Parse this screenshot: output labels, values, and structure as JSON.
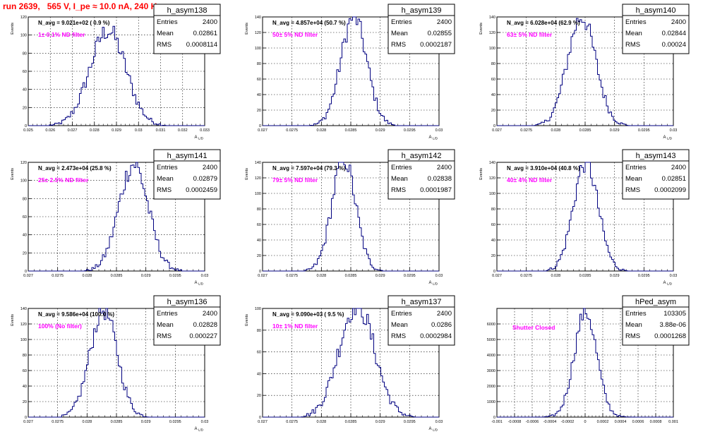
{
  "run_title": "run 2639,   565 V, I_pe ≈ 10.0 nA, 240 Hz",
  "colors": {
    "line": "#000080",
    "filter_text": "#ff00ff",
    "title": "#ff0000",
    "grid": "#000000"
  },
  "chart_data": [
    {
      "type": "histogram",
      "name": "h_asym138",
      "entries": "2400",
      "mean": "0.02861",
      "rms": "0.0008114",
      "navg": "N_avg = 9.021e+02 ( 0.9 %)",
      "filter": "1± 0.1% ND filter",
      "ylabel": "Events",
      "xlabel": "A_{L/D}",
      "xlim": [
        0.025,
        0.033
      ],
      "ylim": [
        0,
        120
      ],
      "xticks": [
        0.025,
        0.026,
        0.027,
        0.028,
        0.029,
        0.03,
        0.031,
        0.032,
        0.033
      ],
      "xtick_labels": [
        "0.025",
        "0.026",
        "0.027",
        "0.028",
        "0.029",
        "0.03",
        "0.031",
        "0.032",
        "0.033"
      ],
      "yticks": [
        0,
        20,
        40,
        60,
        80,
        100,
        120
      ],
      "ytick_labels": [
        "0",
        "20",
        "40",
        "60",
        "80",
        "100",
        "120"
      ],
      "peak": 105,
      "mu": 0.02861,
      "sigma": 0.00081
    },
    {
      "type": "histogram",
      "name": "h_asym139",
      "entries": "2400",
      "mean": "0.02855",
      "rms": "0.0002187",
      "navg": "N_avg = 4.857e+04 (50.7 %)",
      "filter": "50± 5% ND filter",
      "ylabel": "Events",
      "xlabel": "A_{L/D}",
      "xlim": [
        0.027,
        0.03
      ],
      "ylim": [
        0,
        140
      ],
      "xticks": [
        0.027,
        0.0275,
        0.028,
        0.0285,
        0.029,
        0.0295,
        0.03
      ],
      "xtick_labels": [
        "0.027",
        "0.0275",
        "0.028",
        "0.0285",
        "0.029",
        "0.0295",
        "0.03"
      ],
      "yticks": [
        0,
        20,
        40,
        60,
        80,
        100,
        120,
        140
      ],
      "ytick_labels": [
        "0",
        "20",
        "40",
        "60",
        "80",
        "100",
        "120",
        "140"
      ],
      "peak": 140,
      "mu": 0.02855,
      "sigma": 0.00022
    },
    {
      "type": "histogram",
      "name": "h_asym140",
      "entries": "2400",
      "mean": "0.02844",
      "rms": "0.00024",
      "navg": "N_avg = 6.028e+04 (62.9 %)",
      "filter": "63± 5% ND filter",
      "ylabel": "Events",
      "xlabel": "A_{L/D}",
      "xlim": [
        0.027,
        0.03
      ],
      "ylim": [
        0,
        140
      ],
      "xticks": [
        0.027,
        0.0275,
        0.028,
        0.0285,
        0.029,
        0.0295,
        0.03
      ],
      "xtick_labels": [
        "0.027",
        "0.0275",
        "0.028",
        "0.0285",
        "0.029",
        "0.0295",
        "0.03"
      ],
      "yticks": [
        0,
        20,
        40,
        60,
        80,
        100,
        120,
        140
      ],
      "ytick_labels": [
        "0",
        "20",
        "40",
        "60",
        "80",
        "100",
        "120",
        "140"
      ],
      "peak": 140,
      "mu": 0.02844,
      "sigma": 0.00024
    },
    {
      "type": "histogram",
      "name": "h_asym141",
      "entries": "2400",
      "mean": "0.02879",
      "rms": "0.0002459",
      "navg": "N_avg = 2.473e+04 (25.8 %)",
      "filter": "25± 2.5% ND filter",
      "ylabel": "Events",
      "xlabel": "A_{L/D}",
      "xlim": [
        0.027,
        0.03
      ],
      "ylim": [
        0,
        120
      ],
      "xticks": [
        0.027,
        0.0275,
        0.028,
        0.0285,
        0.029,
        0.0295,
        0.03
      ],
      "xtick_labels": [
        "0.027",
        "0.0275",
        "0.028",
        "0.0285",
        "0.029",
        "0.0295",
        "0.03"
      ],
      "yticks": [
        0,
        20,
        40,
        60,
        80,
        100,
        120
      ],
      "ytick_labels": [
        "0",
        "20",
        "40",
        "60",
        "80",
        "100",
        "120"
      ],
      "peak": 118,
      "mu": 0.02879,
      "sigma": 0.00025
    },
    {
      "type": "histogram",
      "name": "h_asym142",
      "entries": "2400",
      "mean": "0.02838",
      "rms": "0.0001987",
      "navg": "N_avg = 7.597e+04 (79.3 %)",
      "filter": "79± 5% ND filter",
      "ylabel": "Events",
      "xlabel": "A_{L/D}",
      "xlim": [
        0.027,
        0.03
      ],
      "ylim": [
        0,
        140
      ],
      "xticks": [
        0.027,
        0.0275,
        0.028,
        0.0285,
        0.029,
        0.0295,
        0.03
      ],
      "xtick_labels": [
        "0.027",
        "0.0275",
        "0.028",
        "0.0285",
        "0.029",
        "0.0295",
        "0.03"
      ],
      "yticks": [
        0,
        20,
        40,
        60,
        80,
        100,
        120,
        140
      ],
      "ytick_labels": [
        "0",
        "20",
        "40",
        "60",
        "80",
        "100",
        "120",
        "140"
      ],
      "peak": 145,
      "mu": 0.02838,
      "sigma": 0.0002
    },
    {
      "type": "histogram",
      "name": "h_asym143",
      "entries": "2400",
      "mean": "0.02851",
      "rms": "0.0002099",
      "navg": "N_avg = 3.910e+04 (40.8 %)",
      "filter": "40± 4% ND filter",
      "ylabel": "Events",
      "xlabel": "A_{L/D}",
      "xlim": [
        0.027,
        0.03
      ],
      "ylim": [
        0,
        140
      ],
      "xticks": [
        0.027,
        0.0275,
        0.028,
        0.0285,
        0.029,
        0.0295,
        0.03
      ],
      "xtick_labels": [
        "0.027",
        "0.0275",
        "0.028",
        "0.0285",
        "0.029",
        "0.0295",
        "0.03"
      ],
      "yticks": [
        0,
        20,
        40,
        60,
        80,
        100,
        120,
        140
      ],
      "ytick_labels": [
        "0",
        "20",
        "40",
        "60",
        "80",
        "100",
        "120",
        "140"
      ],
      "peak": 140,
      "mu": 0.02851,
      "sigma": 0.00021
    },
    {
      "type": "histogram",
      "name": "h_asym136",
      "entries": "2400",
      "mean": "0.02828",
      "rms": "0.000227",
      "navg": "N_avg = 9.586e+04 (100.0 %)",
      "filter": "100% (No filter)",
      "ylabel": "Events",
      "xlabel": "A_{L/D}",
      "xlim": [
        0.027,
        0.03
      ],
      "ylim": [
        0,
        140
      ],
      "xticks": [
        0.027,
        0.0275,
        0.028,
        0.0285,
        0.029,
        0.0295,
        0.03
      ],
      "xtick_labels": [
        "0.027",
        "0.0275",
        "0.028",
        "0.0285",
        "0.029",
        "0.0295",
        "0.03"
      ],
      "yticks": [
        0,
        20,
        40,
        60,
        80,
        100,
        120,
        140
      ],
      "ytick_labels": [
        "0",
        "20",
        "40",
        "60",
        "80",
        "100",
        "120",
        "140"
      ],
      "peak": 138,
      "mu": 0.02828,
      "sigma": 0.00023
    },
    {
      "type": "histogram",
      "name": "h_asym137",
      "entries": "2400",
      "mean": "0.0286",
      "rms": "0.0002984",
      "navg": "N_avg = 9.090e+03 ( 9.5 %)",
      "filter": "10± 1% ND filter",
      "ylabel": "Events",
      "xlabel": "A_{L/D}",
      "xlim": [
        0.027,
        0.03
      ],
      "ylim": [
        0,
        100
      ],
      "xticks": [
        0.027,
        0.0275,
        0.028,
        0.0285,
        0.029,
        0.0295,
        0.03
      ],
      "xtick_labels": [
        "0.027",
        "0.0275",
        "0.028",
        "0.0285",
        "0.029",
        "0.0295",
        "0.03"
      ],
      "yticks": [
        0,
        20,
        40,
        60,
        80,
        100
      ],
      "ytick_labels": [
        "0",
        "20",
        "40",
        "60",
        "80",
        "100"
      ],
      "peak": 104,
      "mu": 0.0286,
      "sigma": 0.0003
    },
    {
      "type": "histogram",
      "name": "hPed_asym",
      "entries": "103305",
      "mean": "3.88e-06",
      "rms": "0.0001268",
      "navg": "",
      "filter": "Shutter Closed",
      "ylabel": "",
      "xlabel": "",
      "xlim": [
        -0.001,
        0.001
      ],
      "ylim": [
        0,
        7000
      ],
      "xticks": [
        -0.001,
        -0.0008,
        -0.0006,
        -0.0004,
        -0.0002,
        0,
        0.0002,
        0.0004,
        0.0006,
        0.0008,
        0.001
      ],
      "xtick_labels": [
        "-0.001",
        "-0.0008",
        "-0.0006",
        "-0.0004",
        "-0.0002",
        "0",
        "0.0002",
        "0.0004",
        "0.0006",
        "0.0008",
        "0.001"
      ],
      "yticks": [
        0,
        1000,
        2000,
        3000,
        4000,
        5000,
        6000
      ],
      "ytick_labels": [
        "0",
        "1000",
        "2000",
        "3000",
        "4000",
        "5000",
        "6000"
      ],
      "peak": 6800,
      "mu": 3.9e-06,
      "sigma": 0.000127
    }
  ]
}
